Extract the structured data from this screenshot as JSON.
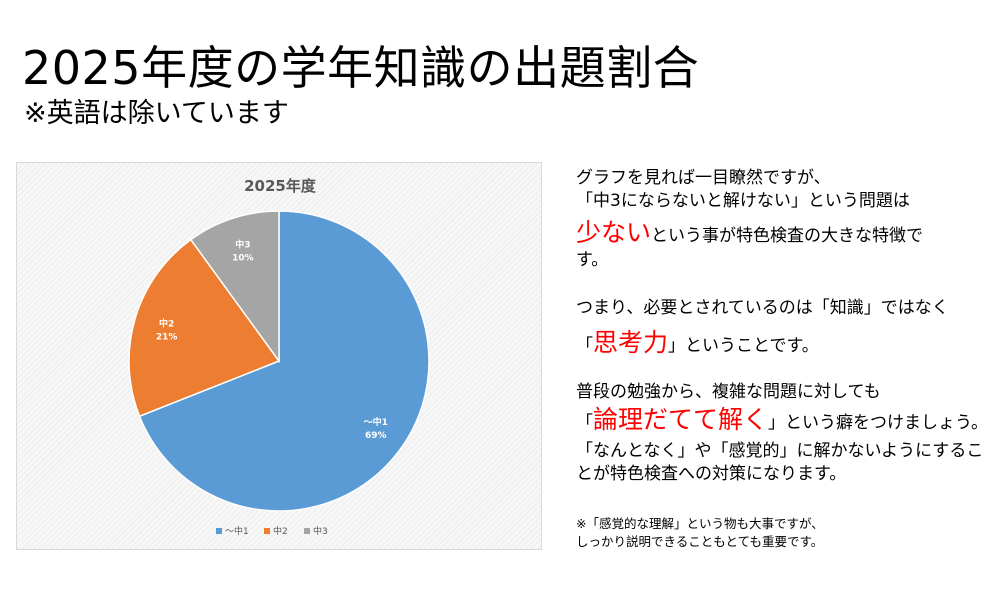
{
  "page": {
    "title": "2025年度の学年知識の出題割合",
    "subtitle": "※英語は除いています"
  },
  "colors": {
    "slice_1": "#5b9bd5",
    "slice_2": "#ed7d31",
    "slice_3": "#a5a5a5",
    "emphasis": "#ff0000"
  },
  "chart_data": {
    "type": "pie",
    "title": "2025年度",
    "legend_position": "bottom",
    "slices": [
      {
        "label": "～中1",
        "value": 69,
        "pct_label": "69%"
      },
      {
        "label": "中2",
        "value": 21,
        "pct_label": "21%"
      },
      {
        "label": "中3",
        "value": 10,
        "pct_label": "10%"
      }
    ]
  },
  "text": {
    "p1_line1": "グラフを見れば一目瞭然ですが、",
    "p1_line2": "「中3にならないと解けない」という問題は",
    "p1_emph": "少ない",
    "p1_line3_rest": "という事が特色検査の大きな特徴で",
    "p1_line4": "す。",
    "p2_line1": "つまり、必要とされているのは「知識」ではなく",
    "p2_open": "「",
    "p2_emph": "思考力",
    "p2_close_rest": "」ということです。",
    "p3_line1": "普段の勉強から、複雑な問題に対しても",
    "p3_open": "「",
    "p3_emph": "論理だてて解く",
    "p3_close_rest": "」という癖をつけましょう。",
    "p3_line3": "「なんとなく」や「感覚的」に解かないようにするこ",
    "p3_line4": "とが特色検査への対策になります。",
    "note_line1": "※「感覚的な理解」という物も大事ですが、",
    "note_line2": "しっかり説明できることもとても重要です。"
  }
}
